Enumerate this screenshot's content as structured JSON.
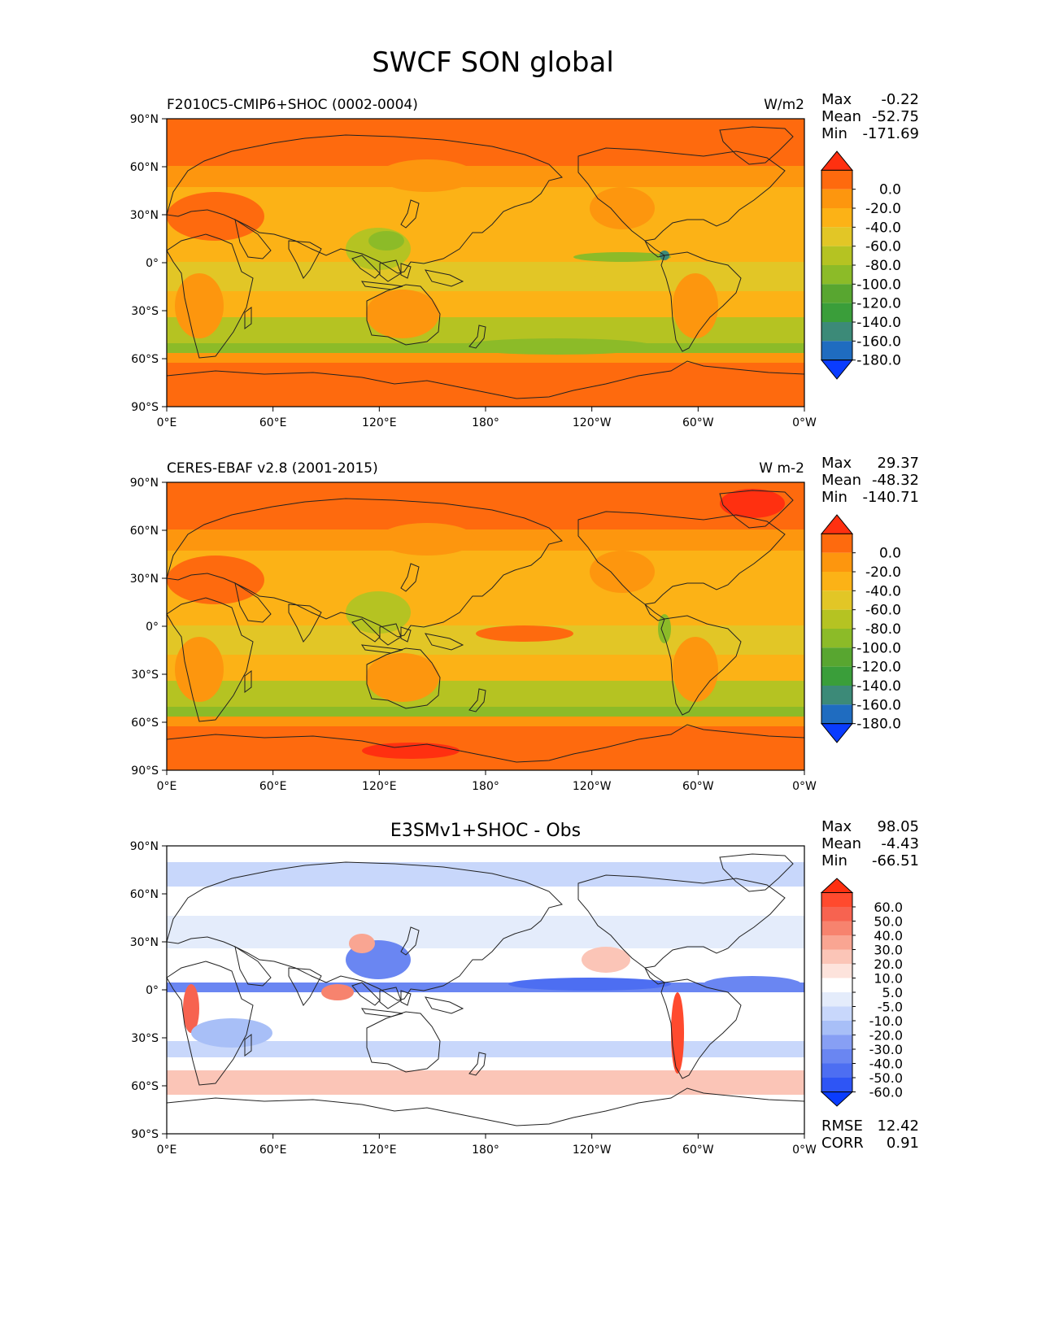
{
  "figure": {
    "title": "SWCF SON global"
  },
  "axes": {
    "lat_labels": [
      "90°N",
      "60°N",
      "30°N",
      "0°",
      "30°S",
      "60°S",
      "90°S"
    ],
    "lon_labels": [
      "0°E",
      "60°E",
      "120°E",
      "180°",
      "120°W",
      "60°W",
      "0°W"
    ]
  },
  "panels": [
    {
      "left_title": "F2010C5-CMIP6+SHOC (0002-0004)",
      "center_title": "",
      "units": "W/m2",
      "stats": [
        {
          "label": "Max",
          "value": "-0.22"
        },
        {
          "label": "Mean",
          "value": "-52.75"
        },
        {
          "label": "Min",
          "value": "-171.69"
        }
      ],
      "colorbar": {
        "labels": [
          "0.0",
          "-20.0",
          "-40.0",
          "-60.0",
          "-80.0",
          "-100.0",
          "-120.0",
          "-140.0",
          "-160.0",
          "-180.0"
        ],
        "colors": [
          "#ff3010",
          "#fe6a0e",
          "#fd960e",
          "#fcb216",
          "#e2c626",
          "#b5c322",
          "#8cbb28",
          "#58a630",
          "#3a9e3a",
          "#3c8a78",
          "#1f6cc0",
          "#0a3cff"
        ]
      },
      "bottom_stats": []
    },
    {
      "left_title": "CERES-EBAF v2.8 (2001-2015)",
      "center_title": "",
      "units": "W m-2",
      "stats": [
        {
          "label": "Max",
          "value": "29.37"
        },
        {
          "label": "Mean",
          "value": "-48.32"
        },
        {
          "label": "Min",
          "value": "-140.71"
        }
      ],
      "colorbar": {
        "labels": [
          "0.0",
          "-20.0",
          "-40.0",
          "-60.0",
          "-80.0",
          "-100.0",
          "-120.0",
          "-140.0",
          "-160.0",
          "-180.0"
        ],
        "colors": [
          "#ff3010",
          "#fe6a0e",
          "#fd960e",
          "#fcb216",
          "#e2c626",
          "#b5c322",
          "#8cbb28",
          "#58a630",
          "#3a9e3a",
          "#3c8a78",
          "#1f6cc0",
          "#0a3cff"
        ]
      },
      "bottom_stats": []
    },
    {
      "left_title": "",
      "center_title": "E3SMv1+SHOC - Obs",
      "units": "",
      "stats": [
        {
          "label": "Max",
          "value": "98.05"
        },
        {
          "label": "Mean",
          "value": "-4.43"
        },
        {
          "label": "Min",
          "value": "-66.51"
        }
      ],
      "colorbar": {
        "labels": [
          "60.0",
          "50.0",
          "40.0",
          "30.0",
          "20.0",
          "10.0",
          "5.0",
          "-5.0",
          "-10.0",
          "-20.0",
          "-30.0",
          "-40.0",
          "-50.0",
          "-60.0"
        ],
        "colors": [
          "#ff3010",
          "#ff4a2e",
          "#f76350",
          "#f7836e",
          "#f9a592",
          "#fbc5b7",
          "#fde3dc",
          "#ffffff",
          "#e4ecfb",
          "#c8d7fb",
          "#a8bff7",
          "#879ff4",
          "#6a86f2",
          "#4d6ef2",
          "#2e55f5",
          "#0a3cff"
        ]
      },
      "bottom_stats": [
        {
          "label": "RMSE",
          "value": "12.42"
        },
        {
          "label": "CORR",
          "value": "0.91"
        }
      ]
    }
  ]
}
